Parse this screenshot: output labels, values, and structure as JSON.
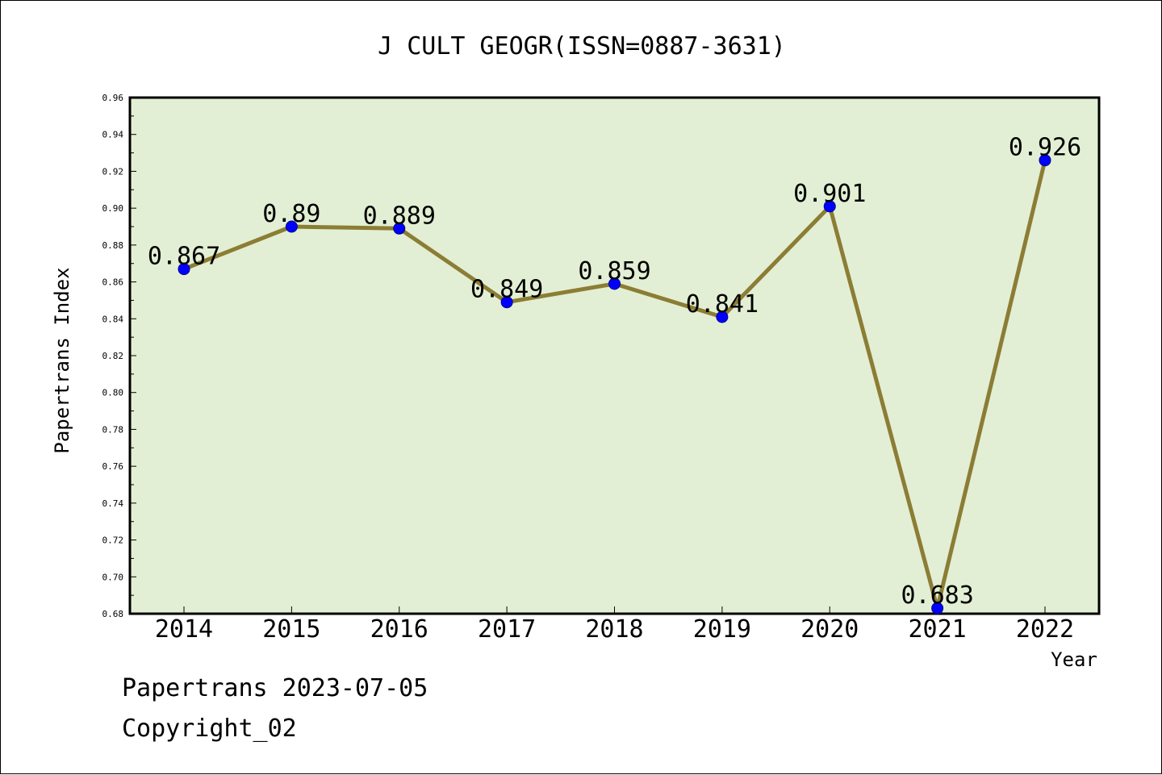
{
  "chart_data": {
    "type": "line",
    "title": "J CULT GEOGR(ISSN=0887-3631)",
    "xlabel": "Year",
    "ylabel": "Papertrans Index",
    "categories": [
      "2014",
      "2015",
      "2016",
      "2017",
      "2018",
      "2019",
      "2020",
      "2021",
      "2022"
    ],
    "series": [
      {
        "values": [
          0.867,
          0.89,
          0.889,
          0.849,
          0.859,
          0.841,
          0.901,
          0.683,
          0.926
        ],
        "data_labels": [
          "0.867",
          "0.89",
          "0.889",
          "0.849",
          "0.859",
          "0.841",
          "0.901",
          "0.683",
          "0.926"
        ]
      }
    ],
    "ylim": [
      0.68,
      0.96
    ],
    "yticks": [
      "0.68",
      "0.70",
      "0.72",
      "0.74",
      "0.76",
      "0.78",
      "0.80",
      "0.82",
      "0.84",
      "0.86",
      "0.88",
      "0.90",
      "0.92",
      "0.94",
      "0.96"
    ],
    "grid": false,
    "colors": {
      "plot_background": "#e2efd4",
      "line": "#8c7d35",
      "marker": "#0000ff"
    }
  },
  "footer": {
    "date_text": "Papertrans 2023-07-05",
    "copyright_text": "Copyright_02"
  }
}
